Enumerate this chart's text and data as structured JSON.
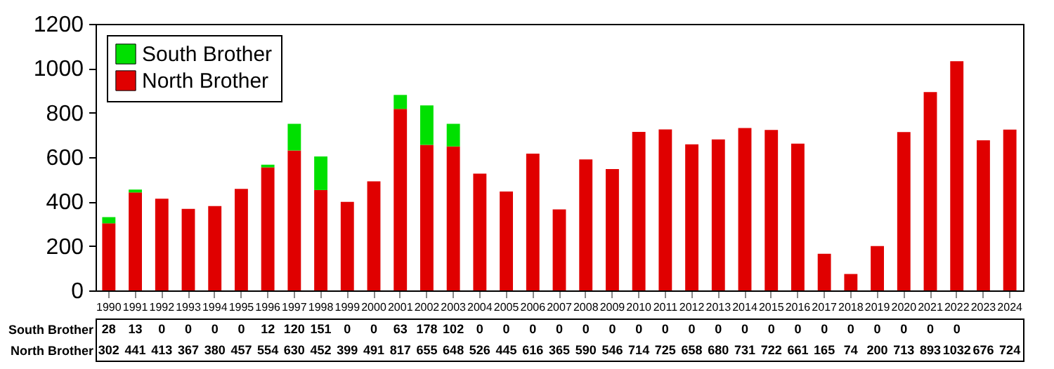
{
  "chart_data": {
    "type": "bar",
    "stacked": true,
    "categories": [
      "1990",
      "1991",
      "1992",
      "1993",
      "1994",
      "1995",
      "1996",
      "1997",
      "1998",
      "1999",
      "2000",
      "2001",
      "2002",
      "2003",
      "2004",
      "2005",
      "2006",
      "2007",
      "2008",
      "2009",
      "2010",
      "2011",
      "2012",
      "2013",
      "2014",
      "2015",
      "2016",
      "2017",
      "2018",
      "2019",
      "2020",
      "2021",
      "2022",
      "2023",
      "2024"
    ],
    "series": [
      {
        "name": "North Brother",
        "color": "#e00000",
        "values": [
          302,
          441,
          413,
          367,
          380,
          457,
          554,
          630,
          452,
          399,
          491,
          817,
          655,
          648,
          526,
          445,
          616,
          365,
          590,
          546,
          714,
          725,
          658,
          680,
          731,
          722,
          661,
          165,
          74,
          200,
          713,
          893,
          1032,
          676,
          724
        ]
      },
      {
        "name": "South Brother",
        "color": "#00e000",
        "values": [
          28,
          13,
          0,
          0,
          0,
          0,
          12,
          120,
          151,
          0,
          0,
          63,
          178,
          102,
          0,
          0,
          0,
          0,
          0,
          0,
          0,
          0,
          0,
          0,
          0,
          0,
          0,
          0,
          0,
          0,
          0,
          0,
          0,
          null,
          null
        ]
      }
    ],
    "ylim": [
      0,
      1200
    ],
    "yticks": [
      0,
      200,
      400,
      600,
      800,
      1000,
      1200
    ],
    "grid": false,
    "legend": "top left",
    "data_labels": true
  }
}
